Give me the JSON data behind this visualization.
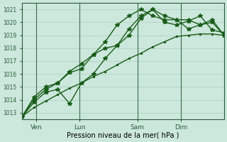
{
  "xlabel": "Pression niveau de la mer( hPa )",
  "bg_color": "#cce8dc",
  "grid_color": "#aacfbb",
  "line_color": "#1a5c1a",
  "vline_color": "#3a6a4a",
  "axis_color": "#2a5a3a",
  "ylim": [
    1012.5,
    1021.5
  ],
  "yticks": [
    1013,
    1014,
    1015,
    1016,
    1017,
    1018,
    1019,
    1020,
    1021
  ],
  "day_labels": [
    "Ven",
    "Lun",
    "Sam",
    "Dim"
  ],
  "day_positions": [
    1,
    4,
    8,
    11
  ],
  "vline_positions": [
    1,
    4,
    8,
    11
  ],
  "xlim": [
    0,
    14
  ],
  "series_jagged1": [
    1012.7,
    1013.8,
    1014.6,
    1014.8,
    1013.7,
    1015.3,
    1016.0,
    1017.2,
    1018.2,
    1019.5,
    1020.5,
    1021.0,
    1020.5,
    1020.2,
    1020.2,
    1019.8,
    1020.0,
    1019.0
  ],
  "series_jagged2": [
    1012.7,
    1014.0,
    1014.8,
    1015.3,
    1016.1,
    1016.4,
    1017.5,
    1018.0,
    1018.2,
    1019.0,
    1020.3,
    1021.0,
    1020.0,
    1019.8,
    1020.1,
    1020.5,
    1019.4,
    1019.2
  ],
  "series_jagged3": [
    1012.7,
    1014.2,
    1015.0,
    1015.3,
    1016.2,
    1016.8,
    1017.5,
    1018.5,
    1019.8,
    1020.5,
    1021.0,
    1020.5,
    1020.2,
    1020.2,
    1019.5,
    1019.8,
    1020.2,
    1019.0
  ],
  "series_linear": [
    1012.7,
    1013.4,
    1013.9,
    1014.4,
    1014.9,
    1015.3,
    1015.8,
    1016.2,
    1016.7,
    1017.2,
    1017.6,
    1018.1,
    1018.5,
    1018.9,
    1019.0,
    1019.1,
    1019.1,
    1019.0
  ],
  "x_jagged": [
    0,
    1,
    2,
    3,
    4,
    5,
    6,
    7,
    8,
    9,
    10,
    11,
    12,
    13,
    14,
    15,
    16,
    17
  ],
  "n_linear": 18,
  "marker": "*",
  "markersize": 4,
  "linewidth": 1.0
}
